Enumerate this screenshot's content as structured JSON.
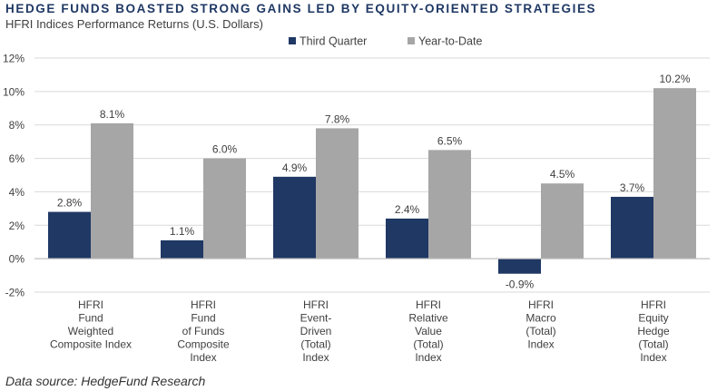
{
  "title": "HEDGE FUNDS BOASTED STRONG GAINS LED BY EQUITY-ORIENTED STRATEGIES",
  "subtitle": "HFRI Indices Performance Returns (U.S. Dollars)",
  "source": "Data source: HedgeFund Research",
  "colors": {
    "third_quarter": "#1f3864",
    "ytd": "#a6a6a6",
    "gridline": "#d9d9d9",
    "text": "#404040"
  },
  "chart_data": {
    "type": "bar",
    "title": "HEDGE FUNDS BOASTED STRONG GAINS LED BY EQUITY-ORIENTED STRATEGIES",
    "subtitle": "HFRI Indices Performance Returns (U.S. Dollars)",
    "xlabel": "",
    "ylabel": "",
    "ylim": [
      -2,
      12
    ],
    "yticks": [
      -2,
      0,
      2,
      4,
      6,
      8,
      10,
      12
    ],
    "ytick_labels": [
      "-2%",
      "0%",
      "2%",
      "4%",
      "6%",
      "8%",
      "10%",
      "12%"
    ],
    "grid": true,
    "legend_position": "top",
    "categories": [
      [
        "HFRI",
        "Fund",
        "Weighted",
        "Composite Index"
      ],
      [
        "HFRI",
        "Fund",
        "of Funds",
        "Composite",
        "Index"
      ],
      [
        "HFRI",
        "Event-",
        "Driven",
        "(Total)",
        "Index"
      ],
      [
        "HFRI",
        "Relative",
        "Value",
        "(Total)",
        "Index"
      ],
      [
        "HFRI",
        "Macro",
        "(Total)",
        "Index"
      ],
      [
        "HFRI",
        "Equity",
        "Hedge",
        "(Total)",
        "Index"
      ]
    ],
    "series": [
      {
        "name": "Third Quarter",
        "values": [
          2.8,
          1.1,
          4.9,
          2.4,
          -0.9,
          3.7
        ],
        "labels": [
          "2.8%",
          "1.1%",
          "4.9%",
          "2.4%",
          "-0.9%",
          "3.7%"
        ]
      },
      {
        "name": "Year-to-Date",
        "values": [
          8.1,
          6.0,
          7.8,
          6.5,
          4.5,
          10.2
        ],
        "labels": [
          "8.1%",
          "6.0%",
          "7.8%",
          "6.5%",
          "4.5%",
          "10.2%"
        ]
      }
    ]
  }
}
